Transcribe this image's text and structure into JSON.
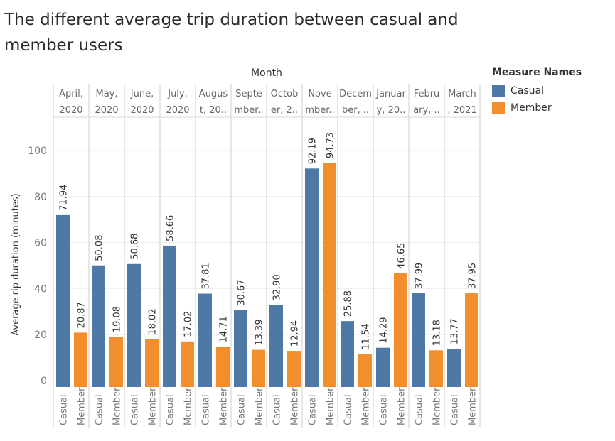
{
  "title": "The different average trip duration between casual and member users",
  "chart_data": {
    "type": "bar",
    "column_header": "Month",
    "categories": [
      "April,|2020",
      "May,|2020",
      "June,|2020",
      "July,|2020",
      "Augus|t, 20..",
      "Septe|mber..",
      "Octob|er, 2..",
      "Nove|mber..",
      "Decem|ber, ..",
      "Januar|y, 20..",
      "Febru|ary, ..",
      "March|, 2021"
    ],
    "series": [
      {
        "name": "Casual",
        "color": "#4e79a7",
        "values": [
          71.94,
          50.08,
          50.68,
          58.66,
          37.81,
          30.67,
          32.9,
          92.19,
          25.88,
          14.29,
          37.99,
          13.77
        ]
      },
      {
        "name": "Member",
        "color": "#f28e2b",
        "values": [
          20.87,
          19.08,
          18.02,
          17.02,
          14.71,
          13.39,
          12.94,
          94.73,
          11.54,
          46.65,
          13.18,
          37.95
        ]
      }
    ],
    "data_labels": {
      "Casual": [
        "71.94",
        "50.08",
        "50.68",
        "58.66",
        "37.81",
        "30.67",
        "32.90",
        "92.19",
        "25.88",
        "14.29",
        "37.99",
        "13.77"
      ],
      "Member": [
        "20.87",
        "19.08",
        "18.02",
        "17.02",
        "14.71",
        "13.39",
        "12.94",
        "94.73",
        "11.54",
        "46.65",
        "13.18",
        "37.95"
      ]
    },
    "ylabel": "Average rip duration (minutes)",
    "yticks": [
      0,
      20,
      40,
      60,
      80,
      100
    ],
    "ylim": [
      0,
      115
    ],
    "grid": true,
    "legend": {
      "title": "Measure Names",
      "position": "right"
    }
  }
}
